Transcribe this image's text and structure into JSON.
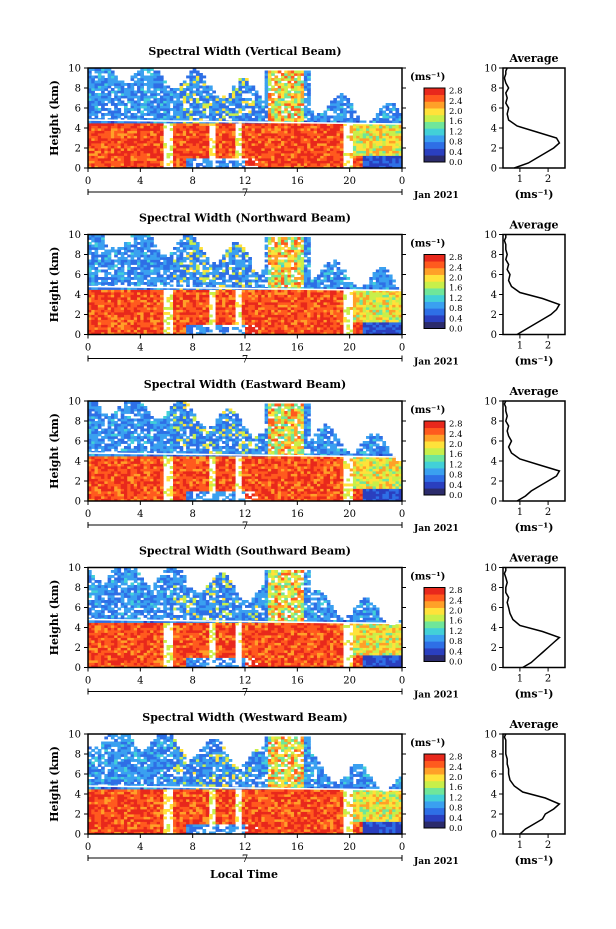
{
  "figure": {
    "x_axis_label": "Local Time",
    "date_label": "Jan 2021"
  },
  "colors": {
    "scale": [
      "#2b2b6b",
      "#2a3fbf",
      "#2e6fe6",
      "#3aa0f0",
      "#42d0d8",
      "#6fe69a",
      "#c8ef4a",
      "#ffe23a",
      "#ffa028",
      "#ff5a1e",
      "#e8281c"
    ]
  },
  "chart_data": [
    {
      "type": "heatmap",
      "title": "Spectral Width (Vertical Beam)",
      "xlabel": "",
      "ylabel": "Height (km)",
      "x_ticks": [
        "0",
        "4",
        "8",
        "12",
        "16",
        "20",
        "0"
      ],
      "day_label": "7",
      "y_ticks": [
        "0",
        "2",
        "4",
        "6",
        "8",
        "10"
      ],
      "xlim": [
        0,
        24
      ],
      "ylim": [
        0,
        10
      ],
      "colorbar_unit": "(ms⁻¹)",
      "colorbar_ticks": [
        "0.0",
        "0.4",
        "0.8",
        "1.2",
        "1.6",
        "2.0",
        "2.4",
        "2.8"
      ],
      "profile": {
        "title": "Average",
        "xlabel": "(ms⁻¹)",
        "x_ticks": [
          "1",
          "2"
        ],
        "xlim": [
          0.4,
          2.6
        ],
        "y_ticks": [
          "0",
          "2",
          "4",
          "6",
          "8",
          "10"
        ],
        "x": [
          0.8,
          1.3,
          1.6,
          1.9,
          2.2,
          2.4,
          2.3,
          1.6,
          0.9,
          0.6,
          0.55,
          0.6,
          0.5,
          0.55,
          0.5,
          0.6,
          0.5,
          0.45,
          0.5,
          0.5,
          0.55
        ],
        "y": [
          0,
          0.5,
          1,
          1.5,
          2,
          2.5,
          3,
          3.6,
          4.2,
          4.8,
          5.4,
          6.0,
          6.5,
          7.0,
          7.5,
          8.0,
          8.5,
          9.0,
          9.4,
          9.7,
          10
        ]
      }
    },
    {
      "type": "heatmap",
      "title": "Spectral Width (Northward Beam)",
      "xlabel": "",
      "ylabel": "Height (km)",
      "x_ticks": [
        "0",
        "4",
        "8",
        "12",
        "16",
        "20",
        "0"
      ],
      "day_label": "7",
      "y_ticks": [
        "0",
        "2",
        "4",
        "6",
        "8",
        "10"
      ],
      "xlim": [
        0,
        24
      ],
      "ylim": [
        0,
        10
      ],
      "colorbar_unit": "(ms⁻¹)",
      "colorbar_ticks": [
        "0.0",
        "0.4",
        "0.8",
        "1.2",
        "1.6",
        "2.0",
        "2.4",
        "2.8"
      ],
      "profile": {
        "title": "Average",
        "xlabel": "(ms⁻¹)",
        "x_ticks": [
          "1",
          "2"
        ],
        "xlim": [
          0.4,
          2.6
        ],
        "y_ticks": [
          "0",
          "2",
          "4",
          "6",
          "8",
          "10"
        ],
        "x": [
          0.9,
          1.2,
          1.5,
          1.8,
          2.1,
          2.3,
          2.4,
          1.8,
          1.0,
          0.7,
          0.6,
          0.65,
          0.55,
          0.6,
          0.5,
          0.55,
          0.5,
          0.5,
          0.45,
          0.5,
          0.5
        ],
        "y": [
          0,
          0.5,
          1,
          1.5,
          2,
          2.5,
          3,
          3.6,
          4.2,
          4.8,
          5.4,
          6.0,
          6.5,
          7.0,
          7.5,
          8.0,
          8.5,
          9.0,
          9.4,
          9.7,
          10
        ]
      }
    },
    {
      "type": "heatmap",
      "title": "Spectral Width (Eastward Beam)",
      "xlabel": "",
      "ylabel": "Height (km)",
      "x_ticks": [
        "0",
        "4",
        "8",
        "12",
        "16",
        "20",
        "0"
      ],
      "day_label": "7",
      "y_ticks": [
        "0",
        "2",
        "4",
        "6",
        "8",
        "10"
      ],
      "xlim": [
        0,
        24
      ],
      "ylim": [
        0,
        10
      ],
      "colorbar_unit": "(ms⁻¹)",
      "colorbar_ticks": [
        "0.0",
        "0.4",
        "0.8",
        "1.2",
        "1.6",
        "2.0",
        "2.4",
        "2.8"
      ],
      "profile": {
        "title": "Average",
        "xlabel": "(ms⁻¹)",
        "x_ticks": [
          "1",
          "2"
        ],
        "xlim": [
          0.4,
          2.6
        ],
        "y_ticks": [
          "0",
          "2",
          "4",
          "6",
          "8",
          "10"
        ],
        "x": [
          0.9,
          1.2,
          1.4,
          1.7,
          2.0,
          2.3,
          2.4,
          1.7,
          1.0,
          0.7,
          0.6,
          0.7,
          0.6,
          0.55,
          0.6,
          0.5,
          0.55,
          0.5,
          0.5,
          0.45,
          0.5
        ],
        "y": [
          0,
          0.5,
          1,
          1.5,
          2,
          2.5,
          3,
          3.6,
          4.2,
          4.8,
          5.4,
          6.0,
          6.5,
          7.0,
          7.5,
          8.0,
          8.5,
          9.0,
          9.4,
          9.7,
          10
        ]
      }
    },
    {
      "type": "heatmap",
      "title": "Spectral Width (Southward Beam)",
      "xlabel": "",
      "ylabel": "Height (km)",
      "x_ticks": [
        "0",
        "4",
        "8",
        "12",
        "16",
        "20",
        "0"
      ],
      "day_label": "7",
      "y_ticks": [
        "0",
        "2",
        "4",
        "6",
        "8",
        "10"
      ],
      "xlim": [
        0,
        24
      ],
      "ylim": [
        0,
        10
      ],
      "colorbar_unit": "(ms⁻¹)",
      "colorbar_ticks": [
        "0.0",
        "0.4",
        "0.8",
        "1.2",
        "1.6",
        "2.0",
        "2.4",
        "2.8"
      ],
      "profile": {
        "title": "Average",
        "xlabel": "(ms⁻¹)",
        "x_ticks": [
          "1",
          "2"
        ],
        "xlim": [
          0.4,
          2.6
        ],
        "y_ticks": [
          "0",
          "2",
          "4",
          "6",
          "8",
          "10"
        ],
        "x": [
          1.1,
          1.4,
          1.6,
          1.8,
          2.0,
          2.2,
          2.4,
          1.8,
          1.0,
          0.75,
          0.65,
          0.6,
          0.55,
          0.6,
          0.5,
          0.5,
          0.55,
          0.5,
          0.45,
          0.5,
          0.5
        ],
        "y": [
          0,
          0.5,
          1,
          1.5,
          2,
          2.5,
          3,
          3.6,
          4.2,
          4.8,
          5.4,
          6.0,
          6.5,
          7.0,
          7.5,
          8.0,
          8.5,
          9.0,
          9.4,
          9.7,
          10
        ]
      }
    },
    {
      "type": "heatmap",
      "title": "Spectral Width (Westward Beam)",
      "xlabel": "",
      "ylabel": "Height (km)",
      "x_ticks": [
        "0",
        "4",
        "8",
        "12",
        "16",
        "20",
        "0"
      ],
      "day_label": "7",
      "y_ticks": [
        "0",
        "2",
        "4",
        "6",
        "8",
        "10"
      ],
      "xlim": [
        0,
        24
      ],
      "ylim": [
        0,
        10
      ],
      "colorbar_unit": "(ms⁻¹)",
      "colorbar_ticks": [
        "0.0",
        "0.4",
        "0.8",
        "1.2",
        "1.6",
        "2.0",
        "2.4",
        "2.8"
      ],
      "profile": {
        "title": "Average",
        "xlabel": "(ms⁻¹)",
        "x_ticks": [
          "1",
          "2"
        ],
        "xlim": [
          0.4,
          2.6
        ],
        "y_ticks": [
          "0",
          "2",
          "4",
          "6",
          "8",
          "10"
        ],
        "x": [
          1.0,
          1.2,
          1.5,
          1.8,
          1.9,
          2.2,
          2.4,
          1.9,
          1.1,
          0.8,
          0.65,
          0.6,
          0.6,
          0.55,
          0.55,
          0.5,
          0.5,
          0.5,
          0.5,
          0.45,
          0.5
        ],
        "y": [
          0,
          0.5,
          1,
          1.5,
          2,
          2.5,
          3,
          3.6,
          4.2,
          4.8,
          5.4,
          6.0,
          6.5,
          7.0,
          7.5,
          8.0,
          8.5,
          9.0,
          9.4,
          9.7,
          10
        ]
      }
    }
  ]
}
